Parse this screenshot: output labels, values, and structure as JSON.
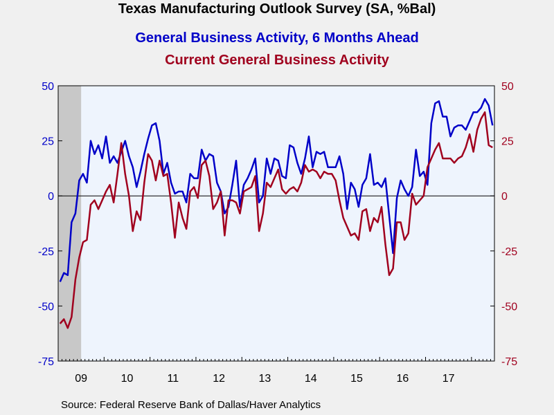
{
  "title": "Texas Manufacturing Outlook Survey (SA, %Bal)",
  "source": "Source:  Federal Reserve Bank of Dallas/Haver Analytics",
  "colors": {
    "series1": "#0000c8",
    "series2": "#a0001e",
    "plot_bg": "#eef4fd",
    "recession": "#c8c8c8"
  },
  "chart_data": {
    "type": "line",
    "x_start": "2009-01",
    "x_frequency": "monthly",
    "x_tick_labels": [
      "09",
      "10",
      "11",
      "12",
      "13",
      "14",
      "15",
      "16",
      "17"
    ],
    "ylim": [
      -75,
      50
    ],
    "y_ticks": [
      -75,
      -50,
      -25,
      0,
      25,
      50
    ],
    "y_ticks_right": [
      -75,
      -50,
      -25,
      0,
      25,
      50
    ],
    "zero_line": true,
    "recession_shading": {
      "start": "2009-01",
      "end": "2009-06"
    },
    "series": [
      {
        "name": "General Business Activity, 6 Months Ahead",
        "color": "#0000c8",
        "values": [
          -39,
          -35,
          -36,
          -12,
          -8,
          7,
          10,
          6,
          25,
          19,
          23,
          17,
          27,
          15,
          18,
          15,
          20,
          25,
          18,
          13,
          4,
          11,
          19,
          26,
          32,
          33,
          25,
          10,
          15,
          6,
          1,
          2,
          2,
          -3,
          10,
          8,
          8,
          21,
          16,
          19,
          18,
          6,
          2,
          -8,
          -5,
          5,
          16,
          -5,
          5,
          8,
          12,
          17,
          -3,
          0,
          17,
          10,
          17,
          16,
          9,
          8,
          23,
          22,
          15,
          10,
          17,
          27,
          13,
          20,
          19,
          20,
          13,
          13,
          13,
          18,
          10,
          -6,
          6,
          3,
          -5,
          5,
          8,
          19,
          5,
          6,
          4,
          8,
          -9,
          -26,
          -1,
          7,
          3,
          0,
          4,
          21,
          9,
          11,
          5,
          33,
          42,
          43,
          36,
          36,
          27,
          31,
          32,
          32,
          30,
          34,
          38,
          38,
          40,
          44,
          41,
          32
        ]
      },
      {
        "name": "Current General Business Activity",
        "color": "#a0001e",
        "values": [
          -58,
          -56,
          -60,
          -55,
          -38,
          -28,
          -21,
          -20,
          -4,
          -2,
          -6,
          -2,
          2,
          5,
          -3,
          10,
          24,
          10,
          0,
          -16,
          -7,
          -11,
          6,
          19,
          16,
          7,
          16,
          9,
          10,
          -3,
          -19,
          -3,
          -10,
          -15,
          2,
          4,
          -1,
          14,
          16,
          9,
          -6,
          -3,
          2,
          -18,
          -2,
          -2,
          -3,
          -8,
          2,
          3,
          4,
          9,
          -16,
          -8,
          6,
          4,
          8,
          12,
          3,
          1,
          3,
          4,
          2,
          6,
          14,
          11,
          12,
          11,
          8,
          11,
          10,
          10,
          7,
          -2,
          -10,
          -14,
          -18,
          -17,
          -20,
          -7,
          -6,
          -16,
          -10,
          -12,
          -5,
          -22,
          -36,
          -33,
          -12,
          -12,
          -20,
          -17,
          1,
          -4,
          -2,
          0,
          13,
          17,
          21,
          24,
          17,
          17,
          17,
          15,
          17,
          18,
          22,
          28,
          20,
          30,
          35,
          38,
          23,
          22
        ]
      }
    ]
  }
}
